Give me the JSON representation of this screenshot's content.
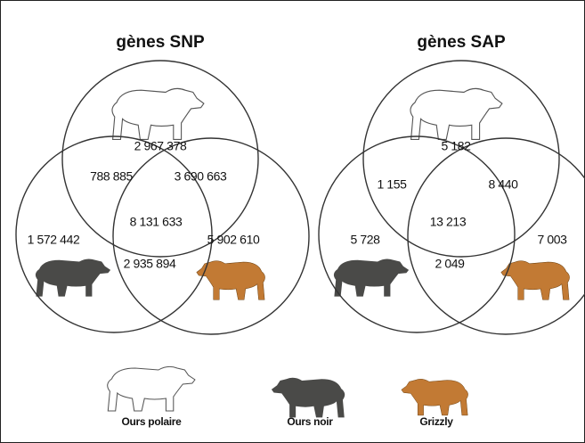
{
  "panels": [
    {
      "title": "gènes SNP",
      "labels": [
        "2 967 378",
        "788 885",
        "3 690 663",
        "8 131 633",
        "1 572 442",
        "5 902 610",
        "2 935 894"
      ]
    },
    {
      "title": "gènes SAP",
      "labels": [
        "5 182",
        "1 155",
        "8 440",
        "13 213",
        "5 728",
        "7 003",
        "2 049"
      ]
    }
  ],
  "legend": [
    "Ours polaire",
    "Ours noir",
    "Grizzly"
  ]
}
